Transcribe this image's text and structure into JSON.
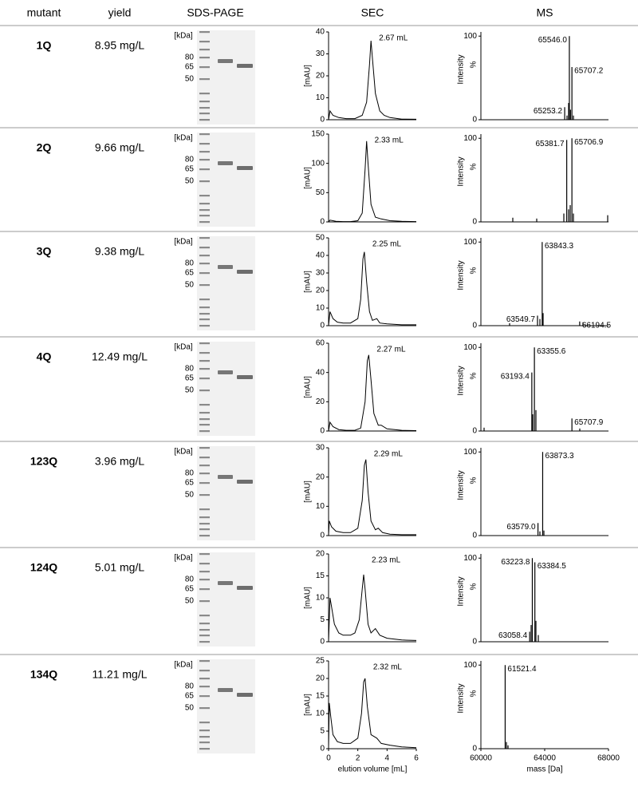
{
  "header": [
    "mutant",
    "yield",
    "SDS-PAGE",
    "SEC",
    "MS"
  ],
  "rows": [
    {
      "mutant": "1Q",
      "yield": "8.95 mg/L",
      "gel": {
        "unit": "[kDa]",
        "markers": [
          80,
          65,
          50
        ]
      },
      "sec": {
        "type": "line",
        "ylabel": "[mAU]",
        "xlim": [
          0,
          6
        ],
        "ylim": [
          0,
          40
        ],
        "yticks": [
          0,
          10,
          20,
          30,
          40
        ],
        "annotation": "2.67 mL",
        "peak_x": 2.9,
        "x": [
          0,
          0.1,
          0.3,
          0.7,
          1.2,
          1.8,
          2.3,
          2.6,
          2.8,
          2.9,
          3.0,
          3.2,
          3.5,
          3.8,
          4.2,
          5,
          6
        ],
        "values": [
          0,
          4,
          2,
          1,
          0.5,
          0.5,
          2,
          8,
          25,
          36,
          28,
          12,
          4,
          2,
          1,
          0.3,
          0.2
        ]
      },
      "ms": {
        "type": "spectrum",
        "ylabel": "Intensity",
        "ylabel_unit": "%",
        "xlim": [
          60000,
          68000
        ],
        "ylim": [
          0,
          105
        ],
        "yticks": [
          0,
          100
        ],
        "x": [
          65253.2,
          65400,
          65500,
          65546.0,
          65620,
          65707.2,
          65800
        ],
        "values": [
          15,
          5,
          20,
          100,
          12,
          63,
          5
        ],
        "value_labels": [
          "65253.2",
          null,
          null,
          "65546.0",
          null,
          "65707.2",
          null
        ]
      }
    },
    {
      "mutant": "2Q",
      "yield": "9.66 mg/L",
      "gel": {
        "unit": "[kDa]",
        "markers": [
          80,
          65,
          50
        ]
      },
      "sec": {
        "type": "line",
        "ylabel": "[mAU]",
        "xlim": [
          0,
          6
        ],
        "ylim": [
          0,
          150
        ],
        "yticks": [
          0,
          50,
          100,
          150
        ],
        "annotation": "2.33 mL",
        "peak_x": 2.6,
        "x": [
          0,
          0.1,
          0.5,
          1,
          1.5,
          2.0,
          2.3,
          2.5,
          2.6,
          2.7,
          2.9,
          3.2,
          3.6,
          4.2,
          5,
          6
        ],
        "values": [
          0,
          3,
          1,
          0.5,
          0.5,
          2,
          15,
          90,
          138,
          100,
          30,
          8,
          5,
          2,
          1,
          0.5
        ]
      },
      "ms": {
        "type": "spectrum",
        "ylabel": "Intensity",
        "ylabel_unit": "%",
        "xlim": [
          60000,
          68000
        ],
        "ylim": [
          0,
          105
        ],
        "yticks": [
          0,
          100
        ],
        "x": [
          62000,
          63500,
          65200,
          65381.7,
          65500,
          65600,
          65706.9,
          65800,
          67950
        ],
        "values": [
          5,
          4,
          10,
          98,
          15,
          20,
          100,
          10,
          8
        ],
        "value_labels": [
          null,
          null,
          null,
          "65381.7",
          null,
          null,
          "65706.9",
          null,
          null
        ]
      }
    },
    {
      "mutant": "3Q",
      "yield": "9.38 mg/L",
      "gel": {
        "unit": "[kDa]",
        "markers": [
          80,
          65,
          50
        ]
      },
      "sec": {
        "type": "line",
        "ylabel": "[mAU]",
        "xlim": [
          0,
          6
        ],
        "ylim": [
          0,
          50
        ],
        "yticks": [
          0,
          10,
          20,
          30,
          40,
          50
        ],
        "annotation": "2.25 mL",
        "peak_x": 2.45,
        "x": [
          0,
          0.1,
          0.3,
          0.6,
          1,
          1.5,
          2.0,
          2.2,
          2.35,
          2.45,
          2.6,
          2.8,
          3.0,
          3.3,
          3.5,
          4,
          5,
          6
        ],
        "values": [
          0,
          8,
          4,
          2,
          1.5,
          1.5,
          4,
          15,
          38,
          42,
          25,
          8,
          3,
          4,
          1.5,
          1,
          0.5,
          0.5
        ]
      },
      "ms": {
        "type": "spectrum",
        "ylabel": "Intensity",
        "ylabel_unit": "%",
        "xlim": [
          60000,
          68000
        ],
        "ylim": [
          0,
          105
        ],
        "yticks": [
          0,
          100
        ],
        "x": [
          61800,
          63549.7,
          63700,
          63843.3,
          63900,
          66194.5,
          66400
        ],
        "values": [
          3,
          12,
          8,
          100,
          15,
          5,
          4
        ],
        "value_labels": [
          null,
          "63549.7",
          null,
          "63843.3",
          null,
          "66194.5",
          null
        ]
      }
    },
    {
      "mutant": "4Q",
      "yield": "12.49 mg/L",
      "gel": {
        "unit": "[kDa]",
        "markers": [
          80,
          65,
          50
        ]
      },
      "sec": {
        "type": "line",
        "ylabel": "[mAU]",
        "xlim": [
          0,
          6
        ],
        "ylim": [
          0,
          60
        ],
        "yticks": [
          0,
          20,
          40,
          60
        ],
        "annotation": "2.27 mL",
        "peak_x": 2.75,
        "x": [
          0,
          0.1,
          0.3,
          0.7,
          1.2,
          1.8,
          2.2,
          2.5,
          2.65,
          2.75,
          2.9,
          3.1,
          3.4,
          3.6,
          4,
          5,
          6
        ],
        "values": [
          0,
          6,
          3,
          1,
          0.5,
          0.5,
          2,
          20,
          48,
          52,
          35,
          12,
          4,
          4,
          1.5,
          0.5,
          0.3
        ]
      },
      "ms": {
        "type": "spectrum",
        "ylabel": "Intensity",
        "ylabel_unit": "%",
        "xlim": [
          60000,
          68000
        ],
        "ylim": [
          0,
          105
        ],
        "yticks": [
          0,
          100
        ],
        "x": [
          60200,
          63193.4,
          63250,
          63355.6,
          63450,
          65707.9,
          66200
        ],
        "values": [
          4,
          70,
          20,
          100,
          25,
          15,
          3
        ],
        "value_labels": [
          null,
          "63193.4",
          null,
          "63355.6",
          null,
          "65707.9",
          null
        ]
      }
    },
    {
      "mutant": "123Q",
      "yield": "3.96 mg/L",
      "gel": {
        "unit": "[kDa]",
        "markers": [
          80,
          65,
          50
        ]
      },
      "sec": {
        "type": "line",
        "ylabel": "[mAU]",
        "xlim": [
          0,
          6
        ],
        "ylim": [
          0,
          30
        ],
        "yticks": [
          0,
          10,
          20,
          30
        ],
        "annotation": "2.29 mL",
        "peak_x": 2.55,
        "x": [
          0,
          0.05,
          0.2,
          0.5,
          1,
          1.5,
          2.0,
          2.3,
          2.45,
          2.55,
          2.7,
          2.9,
          3.2,
          3.4,
          3.7,
          4.2,
          5,
          6
        ],
        "values": [
          0,
          5,
          3,
          1.5,
          1,
          1,
          2.5,
          12,
          24,
          26,
          15,
          5,
          2,
          2.5,
          1,
          0.5,
          0.3,
          0.3
        ]
      },
      "ms": {
        "type": "spectrum",
        "ylabel": "Intensity",
        "ylabel_unit": "%",
        "xlim": [
          60000,
          68000
        ],
        "ylim": [
          0,
          105
        ],
        "yticks": [
          0,
          100
        ],
        "x": [
          63579.0,
          63700,
          63873.3,
          63950
        ],
        "values": [
          15,
          5,
          100,
          6
        ],
        "value_labels": [
          "63579.0",
          null,
          "63873.3",
          null
        ]
      }
    },
    {
      "mutant": "124Q",
      "yield": "5.01 mg/L",
      "gel": {
        "unit": "[kDa]",
        "markers": [
          80,
          65,
          50
        ]
      },
      "sec": {
        "type": "line",
        "ylabel": "[mAU]",
        "xlim": [
          0,
          6
        ],
        "ylim": [
          0,
          20
        ],
        "yticks": [
          0,
          5,
          10,
          15,
          20
        ],
        "annotation": "2.23 mL",
        "peak_x": 2.4,
        "x": [
          0,
          0.1,
          0.2,
          0.4,
          0.7,
          1.0,
          1.5,
          1.8,
          2.1,
          2.3,
          2.4,
          2.5,
          2.7,
          2.9,
          3.2,
          3.5,
          4,
          5,
          6
        ],
        "values": [
          0,
          10,
          8,
          4,
          2,
          1.5,
          1.5,
          2,
          5,
          12,
          15.3,
          12,
          4,
          2,
          3,
          1.5,
          0.8,
          0.4,
          0.3
        ]
      },
      "ms": {
        "type": "spectrum",
        "ylabel": "Intensity",
        "ylabel_unit": "%",
        "xlim": [
          60000,
          68000
        ],
        "ylim": [
          0,
          105
        ],
        "yticks": [
          0,
          100
        ],
        "x": [
          63058.4,
          63150,
          63223.8,
          63384.5,
          63450,
          63600
        ],
        "values": [
          12,
          20,
          100,
          95,
          25,
          8
        ],
        "value_labels": [
          "63058.4",
          null,
          "63223.8",
          "63384.5",
          null,
          null
        ]
      }
    },
    {
      "mutant": "134Q",
      "yield": "11.21 mg/L",
      "gel": {
        "unit": "[kDa]",
        "markers": [
          80,
          65,
          50
        ]
      },
      "sec": {
        "type": "line",
        "ylabel": "[mAU]",
        "xlabel": "elution volume [mL]",
        "xlim": [
          0,
          6
        ],
        "xticks": [
          0,
          2,
          4,
          6
        ],
        "ylim": [
          0,
          25
        ],
        "yticks": [
          0,
          5,
          10,
          15,
          20,
          25
        ],
        "annotation": "2.32 mL",
        "peak_x": 2.5,
        "x": [
          0,
          0.05,
          0.15,
          0.3,
          0.6,
          1,
          1.5,
          2.0,
          2.25,
          2.4,
          2.5,
          2.65,
          2.9,
          3.3,
          3.6,
          4.2,
          5,
          6
        ],
        "values": [
          0,
          13,
          9,
          4,
          2,
          1.5,
          1.5,
          3,
          10,
          19,
          20,
          12,
          4,
          3,
          1.5,
          1,
          0.5,
          0.3
        ]
      },
      "ms": {
        "type": "spectrum",
        "ylabel": "Intensity",
        "ylabel_unit": "%",
        "xlabel": "mass [Da]",
        "xlim": [
          60000,
          68000
        ],
        "xticks": [
          60000,
          64000,
          68000
        ],
        "ylim": [
          0,
          105
        ],
        "yticks": [
          0,
          100
        ],
        "x": [
          61521.4,
          61600,
          61700
        ],
        "values": [
          100,
          8,
          4
        ],
        "value_labels": [
          "61521.4",
          null,
          null
        ]
      }
    }
  ]
}
